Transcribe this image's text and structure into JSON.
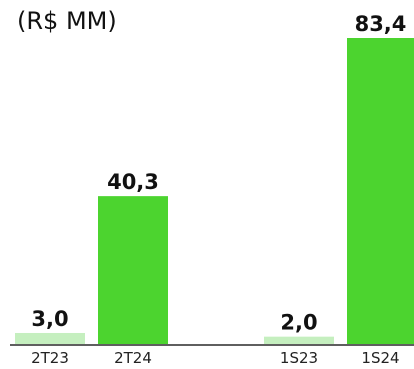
{
  "chart_data": {
    "type": "bar",
    "title": "",
    "subtitle": "(R$ MM)",
    "categories": [
      "2T23",
      "2T24",
      "1S23",
      "1S24"
    ],
    "values": [
      3.0,
      40.3,
      2.0,
      83.4
    ],
    "value_labels": [
      "3,0",
      "40,3",
      "2,0",
      "83,4"
    ],
    "colors": [
      "#c5efbf",
      "#4cd42f",
      "#c5efbf",
      "#4cd42f"
    ],
    "ylim": [
      0,
      83.4
    ],
    "grid": false,
    "legend": "none"
  }
}
